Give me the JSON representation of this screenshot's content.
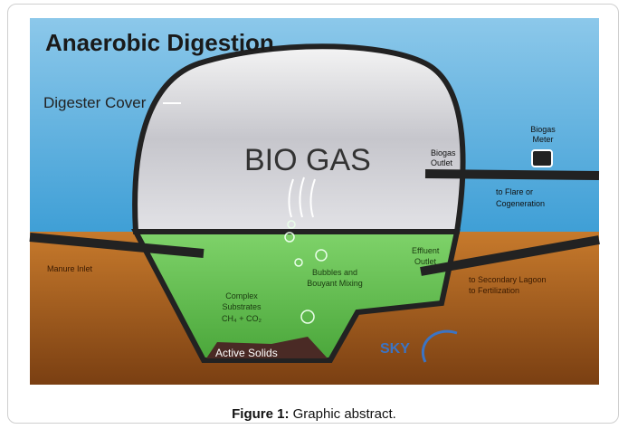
{
  "figure": {
    "title": "Anaerobic Digestion",
    "digester_cover": "Digester Cover",
    "bio_gas": "BIO GAS",
    "biogas_meter": [
      "Biogas",
      "Meter"
    ],
    "biogas_outlet": [
      "Biogas",
      "Outlet"
    ],
    "flare": [
      "to Flare or",
      "Cogeneration"
    ],
    "manure_inlet": "Manure Inlet",
    "effluent_outlet": [
      "Effluent",
      "Outlet"
    ],
    "lagoon": [
      "to Secondary Lagoon",
      "to Fertilization"
    ],
    "bubbles": [
      "Bubbles and",
      "Bouyant Mixing"
    ],
    "substrates": [
      "Complex",
      "Substrates",
      "CH₄ + CO₂"
    ],
    "active_solids": "Active Solids",
    "logo": "SKY"
  },
  "caption": {
    "label": "Figure 1:",
    "text": "Graphic abstract."
  }
}
